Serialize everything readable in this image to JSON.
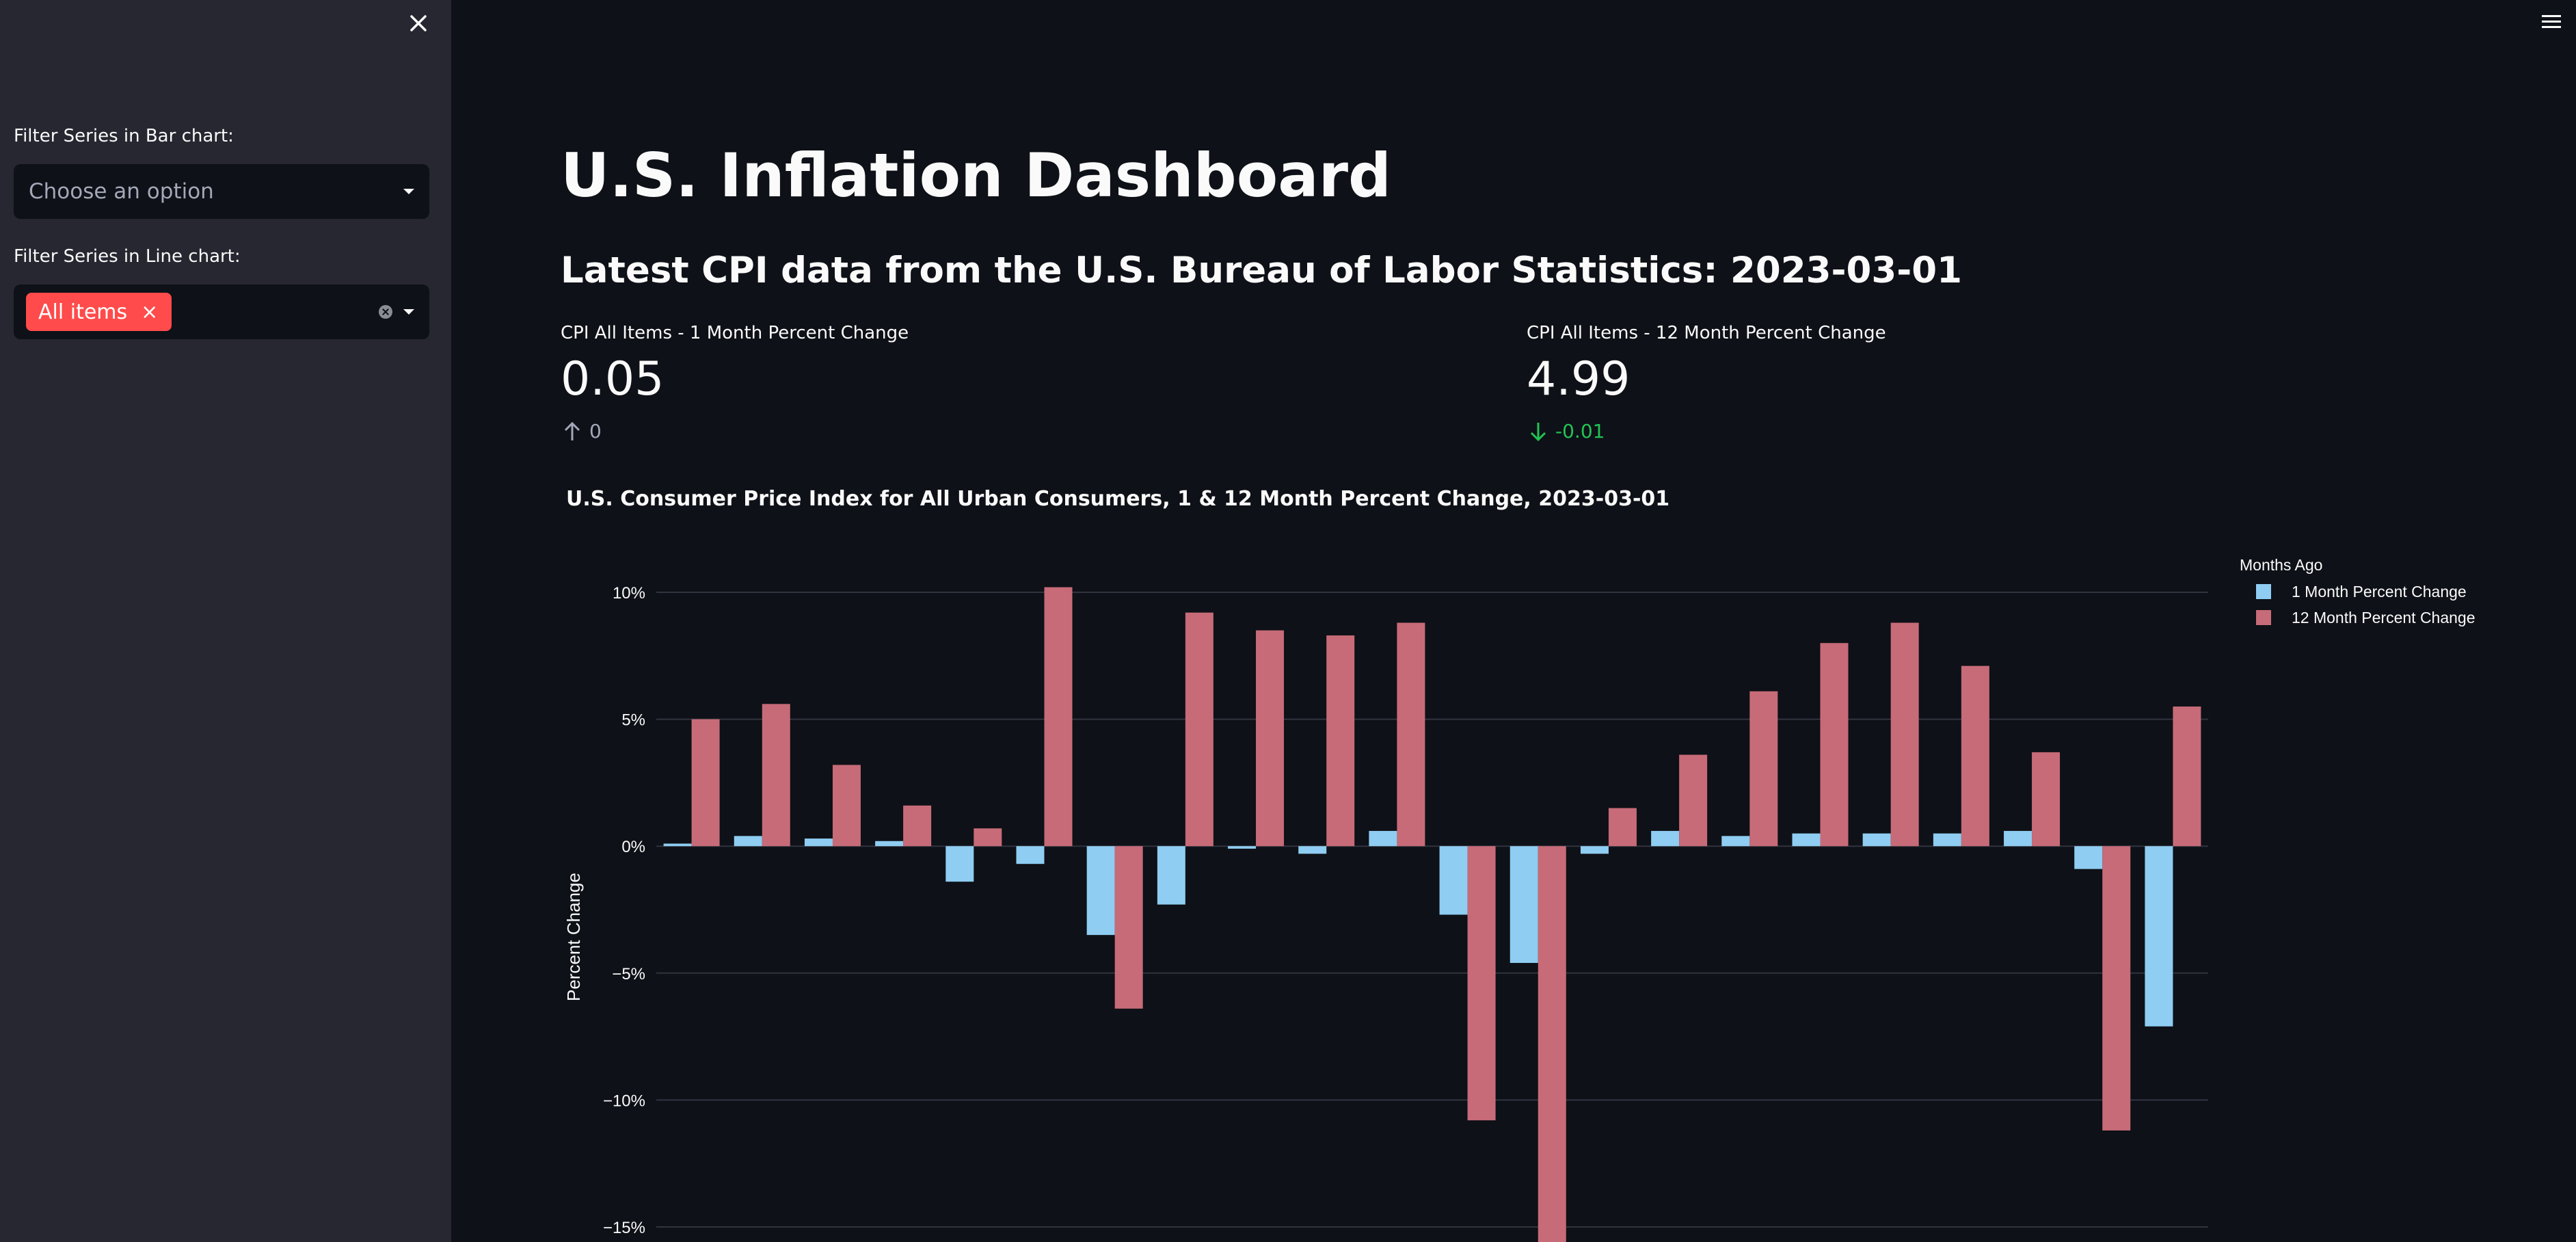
{
  "sidebar": {
    "bar_filter_label": "Filter Series in Bar chart:",
    "bar_filter_placeholder": "Choose an option",
    "line_filter_label": "Filter Series in Line chart:",
    "line_filter_chip": "All items",
    "chip_remove": "×"
  },
  "main": {
    "title": "U.S. Inflation Dashboard",
    "subtitle": "Latest CPI data from the U.S. Bureau of Labor Statistics: 2023-03-01",
    "metrics": [
      {
        "label": "CPI All Items - 1 Month Percent Change",
        "value": "0.05",
        "delta": "0",
        "delta_direction": "up",
        "delta_color": "#a3a8b8"
      },
      {
        "label": "CPI All Items - 12 Month Percent Change",
        "value": "4.99",
        "delta": "-0.01",
        "delta_direction": "down",
        "delta_color": "#21c354"
      }
    ]
  },
  "chart_data": {
    "type": "bar",
    "title": "U.S. Consumer Price Index for All Urban Consumers, 1 & 12 Month Percent Change, 2023-03-01",
    "ylabel": "Percent Change",
    "xlabel": "",
    "ylim": [
      -15,
      10
    ],
    "yticks": [
      10,
      5,
      0,
      -5,
      -10,
      -15
    ],
    "ytick_labels": [
      "10%",
      "5%",
      "0%",
      "−5%",
      "−10%",
      "−15%"
    ],
    "grid": true,
    "legend_title": "Months Ago",
    "legend_placement": "top-right",
    "series": [
      {
        "name": "1 Month Percent Change",
        "color": "#8fcdf2",
        "values": [
          0.1,
          0.4,
          0.3,
          0.2,
          -1.4,
          -0.7,
          -3.5,
          -2.3,
          -0.1,
          -0.3,
          0.6,
          -2.7,
          -4.6,
          -0.3,
          0.6,
          0.4,
          0.5,
          0.5,
          0.5,
          0.6,
          -0.9,
          -7.1
        ]
      },
      {
        "name": "12 Month Percent Change",
        "color": "#c76b78",
        "values": [
          5.0,
          5.6,
          3.2,
          1.6,
          0.7,
          10.2,
          -6.4,
          9.2,
          8.5,
          8.3,
          8.8,
          -10.8,
          -16.0,
          1.5,
          3.6,
          6.1,
          8.0,
          8.8,
          7.1,
          3.7,
          -11.2,
          5.5
        ]
      }
    ]
  },
  "colors": {
    "background": "#0e1117",
    "sidebar": "#262730",
    "accent": "#ff4b4b",
    "grid": "#31333f"
  }
}
